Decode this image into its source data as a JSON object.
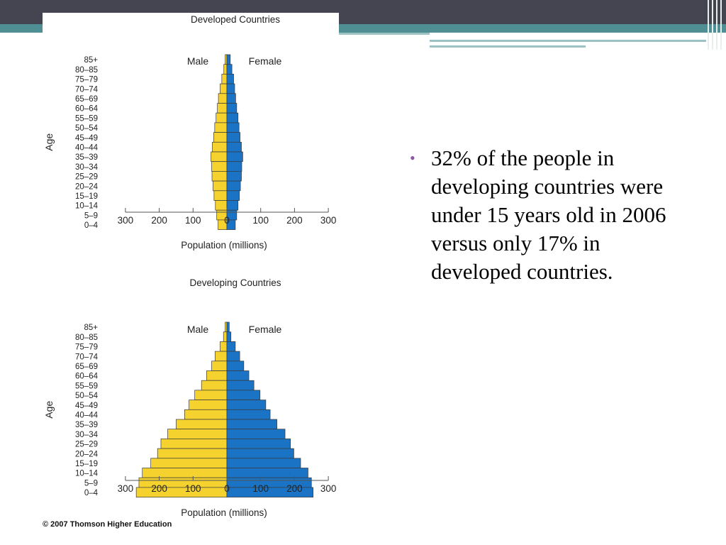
{
  "chart_data": [
    {
      "type": "bar",
      "orientation": "horizontal-population-pyramid",
      "title": "Developed Countries",
      "xlabel": "Population (millions)",
      "ylabel": "Age",
      "xlim": [
        -300,
        300
      ],
      "xticks": [
        -300,
        -200,
        -100,
        0,
        100,
        200,
        300
      ],
      "xtick_labels": [
        "300",
        "200",
        "100",
        "0",
        "100",
        "200",
        "300"
      ],
      "categories": [
        "85+",
        "80–85",
        "75–79",
        "70–74",
        "65–69",
        "60–64",
        "55–59",
        "50–54",
        "45–49",
        "40–44",
        "35–39",
        "30–34",
        "25–29",
        "20–24",
        "15–19",
        "10–14",
        "5–9",
        "0–4"
      ],
      "series": [
        {
          "name": "Male",
          "color": "#f5d22e",
          "values": [
            5,
            9,
            15,
            20,
            25,
            28,
            32,
            36,
            39,
            43,
            47,
            45,
            44,
            41,
            38,
            34,
            30,
            26
          ]
        },
        {
          "name": "Female",
          "color": "#1a73c4",
          "values": [
            10,
            15,
            20,
            23,
            26,
            29,
            33,
            36,
            39,
            43,
            47,
            44,
            43,
            40,
            37,
            33,
            29,
            25
          ]
        }
      ]
    },
    {
      "type": "bar",
      "orientation": "horizontal-population-pyramid",
      "title": "Developing Countries",
      "xlabel": "Population (millions)",
      "ylabel": "Age",
      "xlim": [
        -300,
        300
      ],
      "xticks": [
        -300,
        -200,
        -100,
        0,
        100,
        200,
        300
      ],
      "xtick_labels": [
        "300",
        "200",
        "100",
        "0",
        "100",
        "200",
        "300"
      ],
      "categories": [
        "85+",
        "80–85",
        "75–79",
        "70–74",
        "65–69",
        "60–64",
        "55–59",
        "50–54",
        "45–49",
        "40–44",
        "35–39",
        "30–34",
        "25–29",
        "20–24",
        "15–19",
        "10–14",
        "5–9",
        "0–4"
      ],
      "series": [
        {
          "name": "Male",
          "color": "#f5d22e",
          "values": [
            5,
            10,
            20,
            35,
            45,
            60,
            75,
            95,
            112,
            125,
            150,
            175,
            195,
            205,
            225,
            250,
            260,
            268
          ]
        },
        {
          "name": "Female",
          "color": "#1a73c4",
          "values": [
            7,
            12,
            25,
            38,
            50,
            65,
            80,
            98,
            115,
            128,
            148,
            172,
            188,
            198,
            218,
            240,
            250,
            255
          ]
        }
      ]
    }
  ],
  "copyright": "© 2007 Thomson Higher Education",
  "bullet": {
    "text": "32% of the people in developing countries were under 15 years old in 2006 versus only 17% in developed countries."
  }
}
